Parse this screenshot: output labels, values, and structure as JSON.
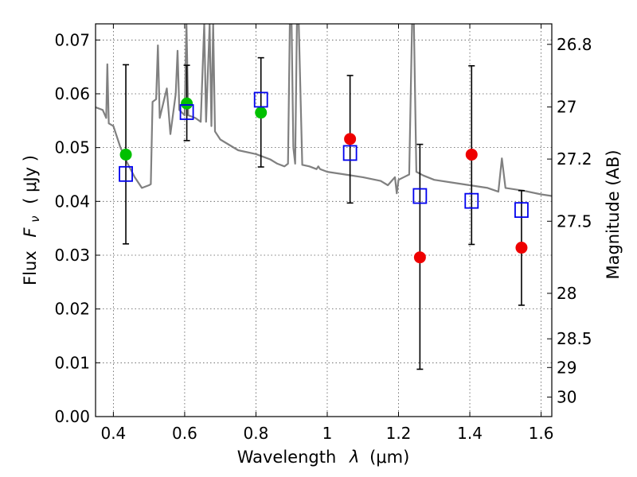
{
  "chart_data": {
    "type": "scatter",
    "xlabel_text": "Wavelength",
    "xlabel_symbol": "λ",
    "xlabel_unit": "(μm)",
    "ylabel_left_text": "Flux",
    "ylabel_left_symbol": "F",
    "ylabel_left_sub": "ν",
    "ylabel_left_unit": "( μJy )",
    "ylabel_right": "Magnitude (AB)",
    "xlim": [
      0.35,
      1.63
    ],
    "ylim": [
      0.0,
      0.073
    ],
    "grid": true,
    "x_ticks": [
      {
        "value": 0.4,
        "label": "0.4"
      },
      {
        "value": 0.6,
        "label": "0.6"
      },
      {
        "value": 0.8,
        "label": "0.8"
      },
      {
        "value": 1.0,
        "label": "1"
      },
      {
        "value": 1.2,
        "label": "1.2"
      },
      {
        "value": 1.4,
        "label": "1.4"
      },
      {
        "value": 1.6,
        "label": "1.6"
      }
    ],
    "y_ticks": [
      {
        "value": 0.0,
        "label": "0.00"
      },
      {
        "value": 0.01,
        "label": "0.01"
      },
      {
        "value": 0.02,
        "label": "0.02"
      },
      {
        "value": 0.03,
        "label": "0.03"
      },
      {
        "value": 0.04,
        "label": "0.04"
      },
      {
        "value": 0.05,
        "label": "0.05"
      },
      {
        "value": 0.06,
        "label": "0.06"
      },
      {
        "value": 0.07,
        "label": "0.07"
      }
    ],
    "right_ticks": [
      {
        "mag": 26.8,
        "label": "26.8"
      },
      {
        "mag": 27.0,
        "label": "27"
      },
      {
        "mag": 27.2,
        "label": "27.2"
      },
      {
        "mag": 27.5,
        "label": "27.5"
      },
      {
        "mag": 28.0,
        "label": "28"
      },
      {
        "mag": 28.5,
        "label": "28.5"
      },
      {
        "mag": 29.0,
        "label": "29"
      },
      {
        "mag": 30.0,
        "label": "30"
      }
    ],
    "errorbars": [
      {
        "x": 0.435,
        "ylo": 0.0321,
        "yhi": 0.0654
      },
      {
        "x": 0.606,
        "ylo": 0.0513,
        "yhi": 0.0653
      },
      {
        "x": 0.814,
        "ylo": 0.0464,
        "yhi": 0.0667
      },
      {
        "x": 1.064,
        "ylo": 0.0397,
        "yhi": 0.0634
      },
      {
        "x": 1.26,
        "ylo": 0.0088,
        "yhi": 0.0506
      },
      {
        "x": 1.405,
        "ylo": 0.032,
        "yhi": 0.0652
      },
      {
        "x": 1.545,
        "ylo": 0.0207,
        "yhi": 0.042
      }
    ],
    "green_points": [
      {
        "x": 0.435,
        "y": 0.0487
      },
      {
        "x": 0.606,
        "y": 0.0582
      },
      {
        "x": 0.814,
        "y": 0.0565
      }
    ],
    "red_points": [
      {
        "x": 1.064,
        "y": 0.0516
      },
      {
        "x": 1.26,
        "y": 0.0296
      },
      {
        "x": 1.405,
        "y": 0.0487
      },
      {
        "x": 1.545,
        "y": 0.0314
      }
    ],
    "model_squares": [
      {
        "x": 0.435,
        "y": 0.0451
      },
      {
        "x": 0.606,
        "y": 0.0566
      },
      {
        "x": 0.814,
        "y": 0.0589
      },
      {
        "x": 1.064,
        "y": 0.049
      },
      {
        "x": 1.26,
        "y": 0.041
      },
      {
        "x": 1.405,
        "y": 0.0401
      },
      {
        "x": 1.545,
        "y": 0.0384
      }
    ],
    "sed_curve": [
      [
        0.35,
        0.0575
      ],
      [
        0.37,
        0.057
      ],
      [
        0.38,
        0.0555
      ],
      [
        0.383,
        0.0655
      ],
      [
        0.387,
        0.0545
      ],
      [
        0.4,
        0.054
      ],
      [
        0.42,
        0.05
      ],
      [
        0.44,
        0.047
      ],
      [
        0.46,
        0.0445
      ],
      [
        0.48,
        0.0425
      ],
      [
        0.5,
        0.043
      ],
      [
        0.505,
        0.0432
      ],
      [
        0.51,
        0.0585
      ],
      [
        0.52,
        0.059
      ],
      [
        0.525,
        0.069
      ],
      [
        0.53,
        0.0555
      ],
      [
        0.55,
        0.061
      ],
      [
        0.56,
        0.0525
      ],
      [
        0.575,
        0.06
      ],
      [
        0.58,
        0.068
      ],
      [
        0.585,
        0.057
      ],
      [
        0.6,
        0.056
      ],
      [
        0.605,
        0.073
      ],
      [
        0.61,
        0.056
      ],
      [
        0.63,
        0.0555
      ],
      [
        0.645,
        0.0548
      ],
      [
        0.655,
        0.073
      ],
      [
        0.66,
        0.0548
      ],
      [
        0.67,
        0.073
      ],
      [
        0.675,
        0.054
      ],
      [
        0.68,
        0.073
      ],
      [
        0.685,
        0.053
      ],
      [
        0.7,
        0.0515
      ],
      [
        0.75,
        0.0495
      ],
      [
        0.8,
        0.0488
      ],
      [
        0.84,
        0.0478
      ],
      [
        0.86,
        0.047
      ],
      [
        0.88,
        0.0465
      ],
      [
        0.89,
        0.047
      ],
      [
        0.895,
        0.073
      ],
      [
        0.9,
        0.073
      ],
      [
        0.905,
        0.05
      ],
      [
        0.91,
        0.047
      ],
      [
        0.915,
        0.073
      ],
      [
        0.92,
        0.073
      ],
      [
        0.93,
        0.0468
      ],
      [
        0.95,
        0.0465
      ],
      [
        0.97,
        0.046
      ],
      [
        0.975,
        0.0465
      ],
      [
        0.98,
        0.046
      ],
      [
        1.0,
        0.0455
      ],
      [
        1.05,
        0.045
      ],
      [
        1.1,
        0.0445
      ],
      [
        1.15,
        0.0438
      ],
      [
        1.17,
        0.043
      ],
      [
        1.19,
        0.0445
      ],
      [
        1.195,
        0.0415
      ],
      [
        1.2,
        0.044
      ],
      [
        1.23,
        0.045
      ],
      [
        1.238,
        0.073
      ],
      [
        1.243,
        0.073
      ],
      [
        1.25,
        0.0455
      ],
      [
        1.27,
        0.0448
      ],
      [
        1.3,
        0.044
      ],
      [
        1.35,
        0.0435
      ],
      [
        1.4,
        0.043
      ],
      [
        1.45,
        0.0425
      ],
      [
        1.48,
        0.0418
      ],
      [
        1.49,
        0.048
      ],
      [
        1.5,
        0.0425
      ],
      [
        1.55,
        0.042
      ],
      [
        1.6,
        0.0413
      ],
      [
        1.63,
        0.041
      ]
    ]
  }
}
